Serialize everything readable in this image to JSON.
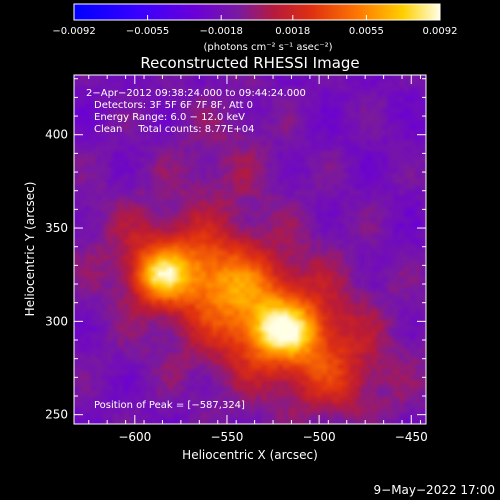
{
  "chart_data": {
    "type": "heatmap",
    "title": "Reconstructed RHESSI Image",
    "xlabel": "Heliocentric X (arcsec)",
    "ylabel": "Heliocentric Y (arcsec)",
    "xlim": [
      -633,
      -442
    ],
    "ylim": [
      245,
      432
    ],
    "xticks": [
      -600,
      -550,
      -500,
      -450
    ],
    "xtick_labels": [
      "−600",
      "−550",
      "−500",
      "−450"
    ],
    "yticks": [
      250,
      300,
      350,
      400
    ],
    "ytick_labels": [
      "250",
      "300",
      "350",
      "400"
    ],
    "colorbar": {
      "range": [
        -0.0092,
        0.0092
      ],
      "ticks": [
        -0.0092,
        -0.0055,
        -0.0018,
        0.0018,
        0.0055,
        0.0092
      ],
      "tick_labels": [
        "−0.0092",
        "−0.0055",
        "−0.0018",
        "0.0018",
        "0.0055",
        "0.0092"
      ],
      "unit_label": "(photons cm⁻² s⁻¹ asec⁻²)"
    },
    "annotations": [
      "2−Apr−2012 09:38:24.000 to 09:44:24.000",
      "Detectors: 3F 5F 6F 7F 8F, Att 0",
      "Energy Range: 6.0 − 12.0 keV",
      "Clean     Total counts: 8.77E+04"
    ],
    "peak_label": "Position of Peak = [−587,324]",
    "peak": [
      -587,
      324
    ],
    "sources": [
      {
        "x": -587,
        "y": 324,
        "value": 0.0092
      },
      {
        "x": -520,
        "y": 295,
        "value": 0.0088
      },
      {
        "x": -565,
        "y": 330,
        "value": 0.008
      }
    ]
  },
  "footer": {
    "date": "9−May−2022 17:00"
  }
}
